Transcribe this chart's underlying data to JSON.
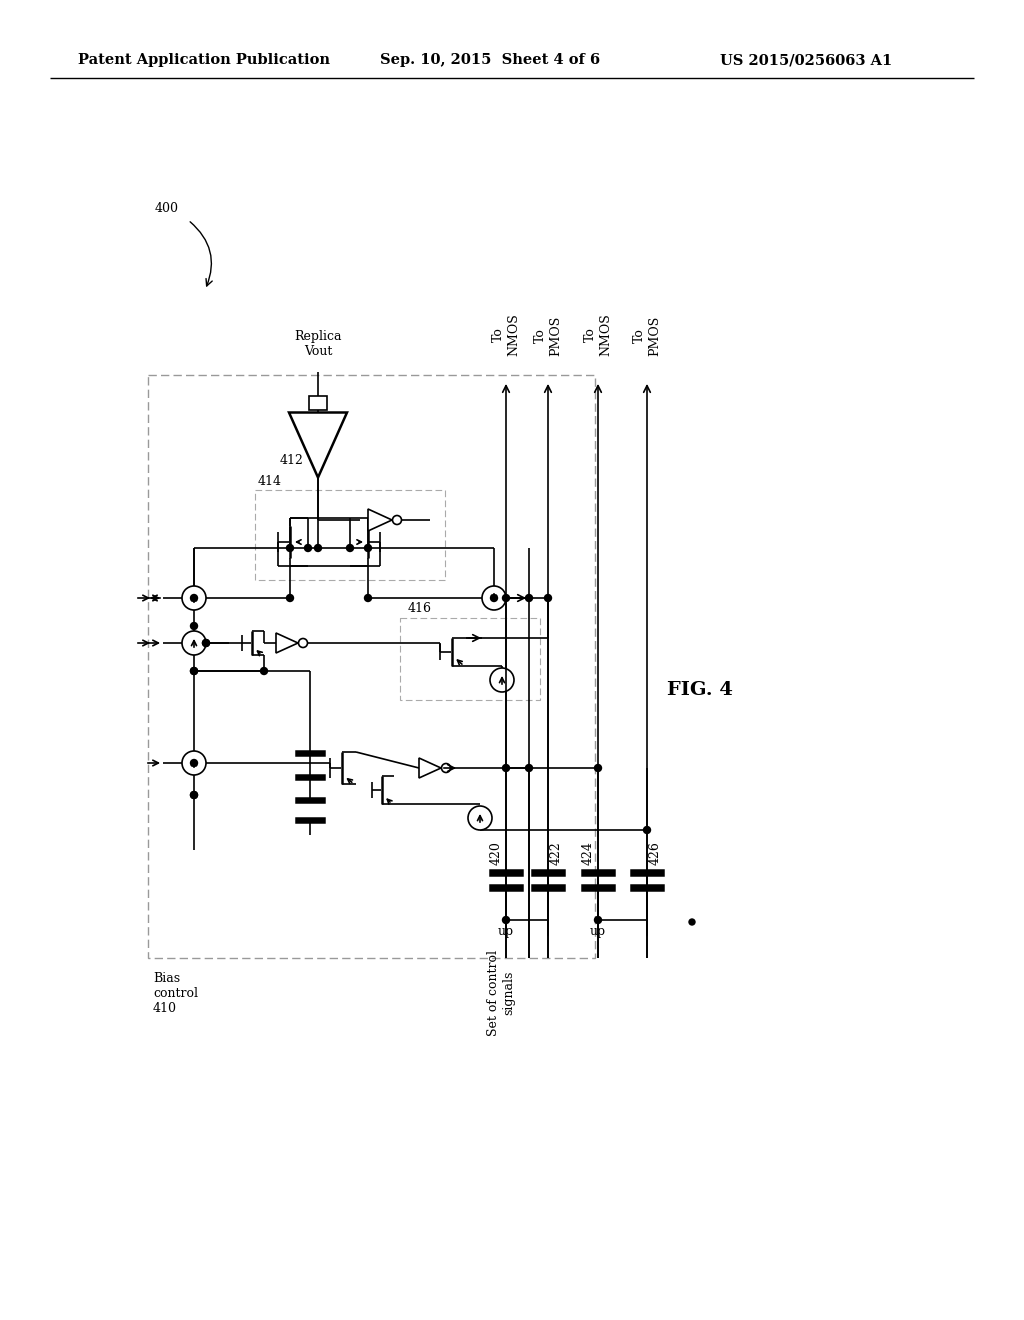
{
  "bg_color": "#ffffff",
  "header_left": "Patent Application Publication",
  "header_center": "Sep. 10, 2015  Sheet 4 of 6",
  "header_right": "US 2015/0256063 A1",
  "fig_label": "FIG. 4",
  "label_400": "400",
  "label_410": "Bias\ncontrol\n410",
  "label_412": "412",
  "label_414": "414",
  "label_416": "416",
  "label_420": "420",
  "label_422": "422",
  "label_424": "424",
  "label_426": "426",
  "label_up1": "up",
  "label_up2": "up",
  "label_signals": "Set of control\nsignals",
  "label_replica_vout": "Replica\nVout",
  "label_to_nmos1": "To\nNMOS",
  "label_to_pmos1": "To\nPMOS",
  "label_to_nmos2": "To\nNMOS",
  "label_to_pmos2": "To\nPMOS"
}
